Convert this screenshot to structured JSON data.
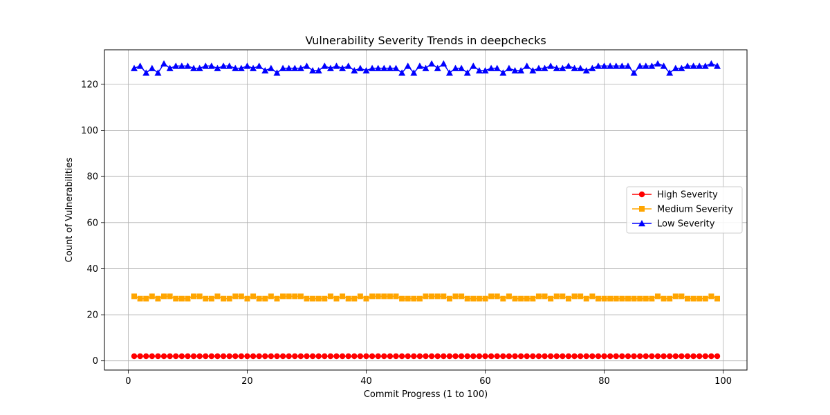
{
  "chart_data": {
    "type": "line",
    "title": "Vulnerability Severity Trends in deepchecks",
    "xlabel": "Commit Progress (1 to 100)",
    "ylabel": "Count of Vulnerabilities",
    "xlim": [
      -4,
      104
    ],
    "ylim": [
      -4,
      135
    ],
    "xticks": [
      0,
      20,
      40,
      60,
      80,
      100
    ],
    "yticks": [
      0,
      20,
      40,
      60,
      80,
      100,
      120
    ],
    "grid": true,
    "legend_position": "center-right",
    "x": [
      1,
      2,
      3,
      4,
      5,
      6,
      7,
      8,
      9,
      10,
      11,
      12,
      13,
      14,
      15,
      16,
      17,
      18,
      19,
      20,
      21,
      22,
      23,
      24,
      25,
      26,
      27,
      28,
      29,
      30,
      31,
      32,
      33,
      34,
      35,
      36,
      37,
      38,
      39,
      40,
      41,
      42,
      43,
      44,
      45,
      46,
      47,
      48,
      49,
      50,
      51,
      52,
      53,
      54,
      55,
      56,
      57,
      58,
      59,
      60,
      61,
      62,
      63,
      64,
      65,
      66,
      67,
      68,
      69,
      70,
      71,
      72,
      73,
      74,
      75,
      76,
      77,
      78,
      79,
      80,
      81,
      82,
      83,
      84,
      85,
      86,
      87,
      88,
      89,
      90,
      91,
      92,
      93,
      94,
      95,
      96,
      97,
      98,
      99
    ],
    "series": [
      {
        "name": "High Severity",
        "color": "#ff0000",
        "marker": "circle",
        "values": [
          2,
          2,
          2,
          2,
          2,
          2,
          2,
          2,
          2,
          2,
          2,
          2,
          2,
          2,
          2,
          2,
          2,
          2,
          2,
          2,
          2,
          2,
          2,
          2,
          2,
          2,
          2,
          2,
          2,
          2,
          2,
          2,
          2,
          2,
          2,
          2,
          2,
          2,
          2,
          2,
          2,
          2,
          2,
          2,
          2,
          2,
          2,
          2,
          2,
          2,
          2,
          2,
          2,
          2,
          2,
          2,
          2,
          2,
          2,
          2,
          2,
          2,
          2,
          2,
          2,
          2,
          2,
          2,
          2,
          2,
          2,
          2,
          2,
          2,
          2,
          2,
          2,
          2,
          2,
          2,
          2,
          2,
          2,
          2,
          2,
          2,
          2,
          2,
          2,
          2,
          2,
          2,
          2,
          2,
          2,
          2,
          2,
          2,
          2
        ]
      },
      {
        "name": "Medium Severity",
        "color": "#ffa500",
        "marker": "square",
        "values": [
          28,
          27,
          27,
          28,
          27,
          28,
          28,
          27,
          27,
          27,
          28,
          28,
          27,
          27,
          28,
          27,
          27,
          28,
          28,
          27,
          28,
          27,
          27,
          28,
          27,
          28,
          28,
          28,
          28,
          27,
          27,
          27,
          27,
          28,
          27,
          28,
          27,
          27,
          28,
          27,
          28,
          28,
          28,
          28,
          28,
          27,
          27,
          27,
          27,
          28,
          28,
          28,
          28,
          27,
          28,
          28,
          27,
          27,
          27,
          27,
          28,
          28,
          27,
          28,
          27,
          27,
          27,
          27,
          28,
          28,
          27,
          28,
          28,
          27,
          28,
          28,
          27,
          28,
          27,
          27,
          27,
          27,
          27,
          27,
          27,
          27,
          27,
          27,
          28,
          27,
          27,
          28,
          28,
          27,
          27,
          27,
          27,
          28,
          27
        ]
      },
      {
        "name": "Low Severity",
        "color": "#0000ff",
        "marker": "triangle",
        "values": [
          127,
          128,
          125,
          127,
          125,
          129,
          127,
          128,
          128,
          128,
          127,
          127,
          128,
          128,
          127,
          128,
          128,
          127,
          127,
          128,
          127,
          128,
          126,
          127,
          125,
          127,
          127,
          127,
          127,
          128,
          126,
          126,
          128,
          127,
          128,
          127,
          128,
          126,
          127,
          126,
          127,
          127,
          127,
          127,
          127,
          125,
          128,
          125,
          128,
          127,
          129,
          127,
          129,
          125,
          127,
          127,
          125,
          128,
          126,
          126,
          127,
          127,
          125,
          127,
          126,
          126,
          128,
          126,
          127,
          127,
          128,
          127,
          127,
          128,
          127,
          127,
          126,
          127,
          128,
          128,
          128,
          128,
          128,
          128,
          125,
          128,
          128,
          128,
          129,
          128,
          125,
          127,
          127,
          128,
          128,
          128,
          128,
          129,
          128
        ]
      }
    ]
  }
}
